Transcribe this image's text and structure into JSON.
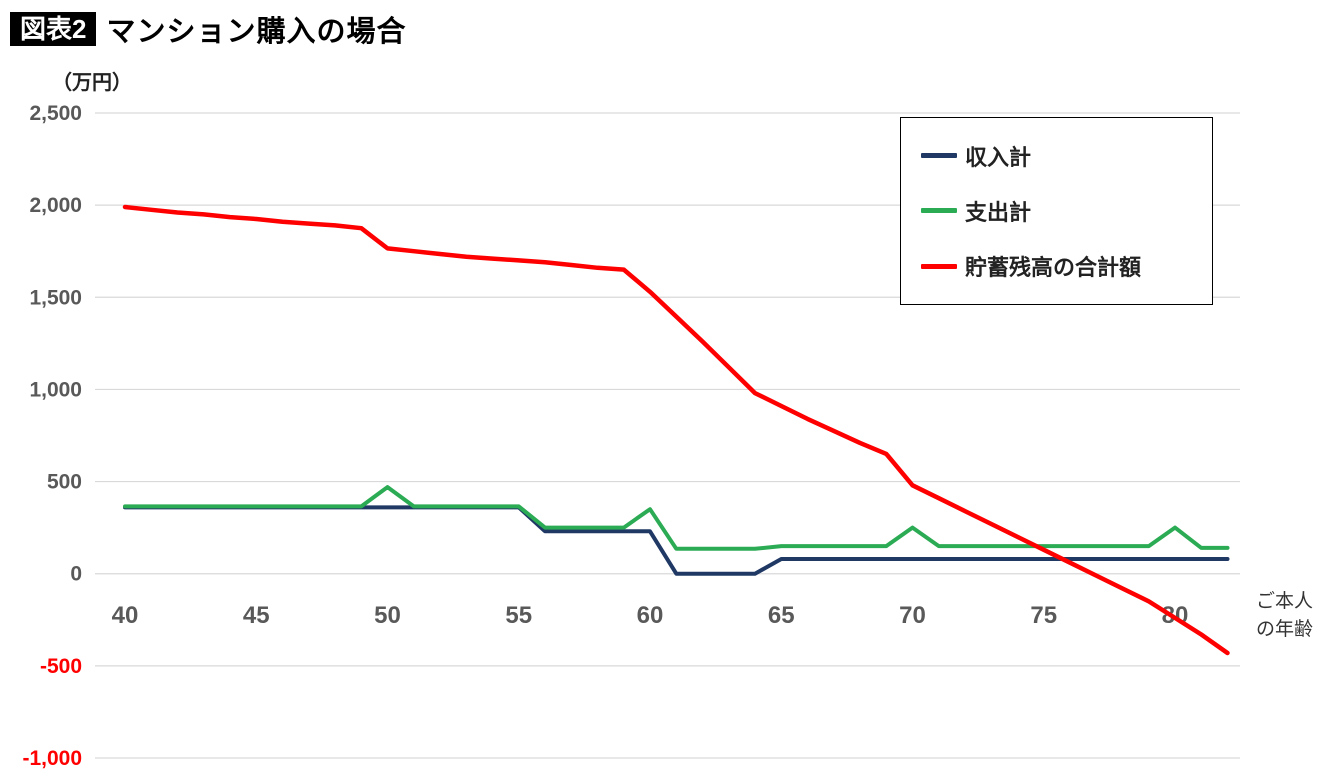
{
  "title": {
    "badge": "図表2",
    "text": "マンション購入の場合"
  },
  "unit_label": "（万円）",
  "x_axis_title_lines": {
    "line1": "ご本人",
    "line2": "の年齢"
  },
  "colors": {
    "income": "#1f3864",
    "expense": "#2cab55",
    "savings": "#ff0000",
    "grid": "#d9d9d9",
    "tick": "#595959",
    "negative_tick": "#ff0000"
  },
  "chart_data": {
    "type": "line",
    "title": "図表2 マンション購入の場合",
    "ylabel": "（万円）",
    "xlabel": "ご本人の年齢",
    "ylim": [
      -1000,
      2500
    ],
    "ytick_step": 500,
    "xticks": [
      40,
      45,
      50,
      55,
      60,
      65,
      70,
      75,
      80
    ],
    "grid": true,
    "legend_position": "top-right",
    "x": [
      40,
      41,
      42,
      43,
      44,
      45,
      46,
      47,
      48,
      49,
      50,
      51,
      52,
      53,
      54,
      55,
      56,
      57,
      58,
      59,
      60,
      61,
      62,
      63,
      64,
      65,
      66,
      67,
      68,
      69,
      70,
      71,
      72,
      73,
      74,
      75,
      76,
      77,
      78,
      79,
      80,
      81,
      82
    ],
    "series": [
      {
        "name": "収入計",
        "color_key": "income",
        "values": [
          360,
          360,
          360,
          360,
          360,
          360,
          360,
          360,
          360,
          360,
          360,
          360,
          360,
          360,
          360,
          360,
          230,
          230,
          230,
          230,
          230,
          0,
          0,
          0,
          0,
          80,
          80,
          80,
          80,
          80,
          80,
          80,
          80,
          80,
          80,
          80,
          80,
          80,
          80,
          80,
          80,
          80,
          80
        ]
      },
      {
        "name": "支出計",
        "color_key": "expense",
        "values": [
          365,
          365,
          365,
          365,
          365,
          365,
          365,
          365,
          365,
          365,
          470,
          365,
          365,
          365,
          365,
          365,
          250,
          250,
          250,
          250,
          350,
          135,
          135,
          135,
          135,
          150,
          150,
          150,
          150,
          150,
          250,
          150,
          150,
          150,
          150,
          150,
          150,
          150,
          150,
          150,
          250,
          140,
          140
        ]
      },
      {
        "name": "貯蓄残高の合計額",
        "color_key": "savings",
        "values": [
          1990,
          1975,
          1960,
          1950,
          1935,
          1925,
          1910,
          1900,
          1890,
          1875,
          1765,
          1750,
          1735,
          1720,
          1710,
          1700,
          1690,
          1675,
          1660,
          1650,
          1530,
          1395,
          1260,
          1120,
          980,
          910,
          840,
          775,
          710,
          650,
          480,
          410,
          340,
          270,
          200,
          130,
          60,
          -10,
          -80,
          -150,
          -240,
          -330,
          -430
        ]
      }
    ]
  }
}
